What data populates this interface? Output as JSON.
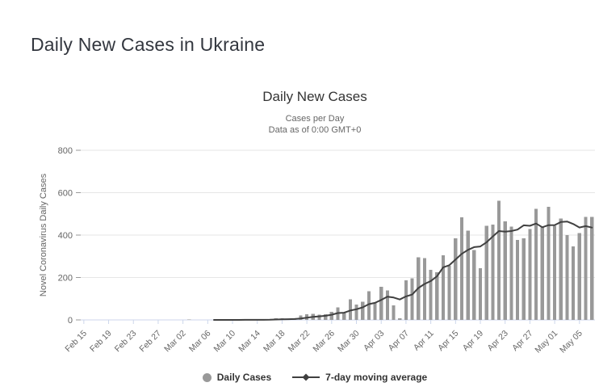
{
  "page": {
    "title": "Daily New Cases in Ukraine"
  },
  "chart": {
    "title": "Daily New Cases",
    "subtitle1": "Cases per Day",
    "subtitle2": "Data as of 0:00 GMT+0",
    "y_axis_title": "Novel Coronavirus Daily Cases",
    "legend": {
      "daily_cases": "Daily Cases",
      "moving_average": "7-day moving average"
    },
    "colors": {
      "bar": "#999999",
      "moving_average_line": "#404040",
      "axis_text": "#666666",
      "grid": "#e6e6e6",
      "axis_line": "#ccd6eb",
      "tick": "#999999"
    }
  },
  "chart_data": {
    "type": "bar",
    "title": "Daily New Cases",
    "subtitle": "Cases per Day | Data as of 0:00 GMT+0",
    "xlabel": "",
    "ylabel": "Novel Coronavirus Daily Cases",
    "ylim": [
      0,
      800
    ],
    "yticks": [
      0,
      200,
      400,
      600,
      800
    ],
    "grid": true,
    "legend_position": "bottom",
    "x_tick_every": 4,
    "x_tick_labels": [
      "Feb 15",
      "Feb 19",
      "Feb 23",
      "Feb 27",
      "Mar 02",
      "Mar 06",
      "Mar 10",
      "Mar 14",
      "Mar 18",
      "Mar 22",
      "Mar 26",
      "Mar 30",
      "Apr 03",
      "Apr 07",
      "Apr 11",
      "Apr 15",
      "Apr 19",
      "Apr 23",
      "Apr 27",
      "May 01",
      "May 05"
    ],
    "categories": [
      "Feb 15",
      "Feb 16",
      "Feb 17",
      "Feb 18",
      "Feb 19",
      "Feb 20",
      "Feb 21",
      "Feb 22",
      "Feb 23",
      "Feb 24",
      "Feb 25",
      "Feb 26",
      "Feb 27",
      "Feb 28",
      "Feb 29",
      "Mar 01",
      "Mar 02",
      "Mar 03",
      "Mar 04",
      "Mar 05",
      "Mar 06",
      "Mar 07",
      "Mar 08",
      "Mar 09",
      "Mar 10",
      "Mar 11",
      "Mar 12",
      "Mar 13",
      "Mar 14",
      "Mar 15",
      "Mar 16",
      "Mar 17",
      "Mar 18",
      "Mar 19",
      "Mar 20",
      "Mar 21",
      "Mar 22",
      "Mar 23",
      "Mar 24",
      "Mar 25",
      "Mar 26",
      "Mar 27",
      "Mar 28",
      "Mar 29",
      "Mar 30",
      "Mar 31",
      "Apr 01",
      "Apr 02",
      "Apr 03",
      "Apr 04",
      "Apr 05",
      "Apr 06",
      "Apr 07",
      "Apr 08",
      "Apr 09",
      "Apr 10",
      "Apr 11",
      "Apr 12",
      "Apr 13",
      "Apr 14",
      "Apr 15",
      "Apr 16",
      "Apr 17",
      "Apr 18",
      "Apr 19",
      "Apr 20",
      "Apr 21",
      "Apr 22",
      "Apr 23",
      "Apr 24",
      "Apr 25",
      "Apr 26",
      "Apr 27",
      "Apr 28",
      "Apr 29",
      "Apr 30",
      "May 01",
      "May 02",
      "May 03",
      "May 04",
      "May 05",
      "May 06",
      "May 07"
    ],
    "series": [
      {
        "name": "Daily Cases",
        "type": "bar",
        "values": [
          0,
          0,
          0,
          0,
          0,
          0,
          0,
          0,
          0,
          0,
          0,
          0,
          0,
          0,
          0,
          0,
          0,
          1,
          0,
          0,
          0,
          0,
          0,
          0,
          0,
          0,
          2,
          0,
          0,
          0,
          4,
          7,
          7,
          5,
          5,
          21,
          26,
          29,
          24,
          27,
          39,
          60,
          32,
          97,
          72,
          85,
          135,
          81,
          156,
          140,
          69,
          8,
          187,
          196,
          296,
          291,
          237,
          224,
          305,
          256,
          384,
          484,
          421,
          330,
          243,
          444,
          450,
          561,
          465,
          440,
          378,
          384,
          428,
          524,
          440,
          534,
          443,
          478,
          400,
          347,
          409,
          486,
          486
        ]
      },
      {
        "name": "7-day moving average",
        "type": "line",
        "values": [
          null,
          null,
          null,
          null,
          null,
          null,
          null,
          null,
          null,
          null,
          null,
          null,
          null,
          null,
          null,
          null,
          null,
          null,
          null,
          null,
          null,
          0.1,
          0.1,
          0.1,
          0,
          0,
          0.3,
          0.3,
          0.3,
          0.3,
          0.9,
          1.9,
          2.9,
          3.3,
          4,
          7,
          10.7,
          14.3,
          16.7,
          19.6,
          24.4,
          32.3,
          33.9,
          44,
          50.1,
          58.9,
          74.3,
          80.3,
          94,
          109.4,
          105.4,
          96.3,
          110.9,
          119.6,
          150.3,
          169.6,
          183.4,
          205.6,
          248,
          257.9,
          284.7,
          311.6,
          330.1,
          343.4,
          346.1,
          366,
          393.7,
          419,
          416.3,
          419,
          425.9,
          446,
          443.7,
          454.3,
          437,
          446.9,
          447.3,
          461.6,
          463.9,
          452.3,
          435.9,
          442.4,
          435.6
        ]
      }
    ]
  }
}
